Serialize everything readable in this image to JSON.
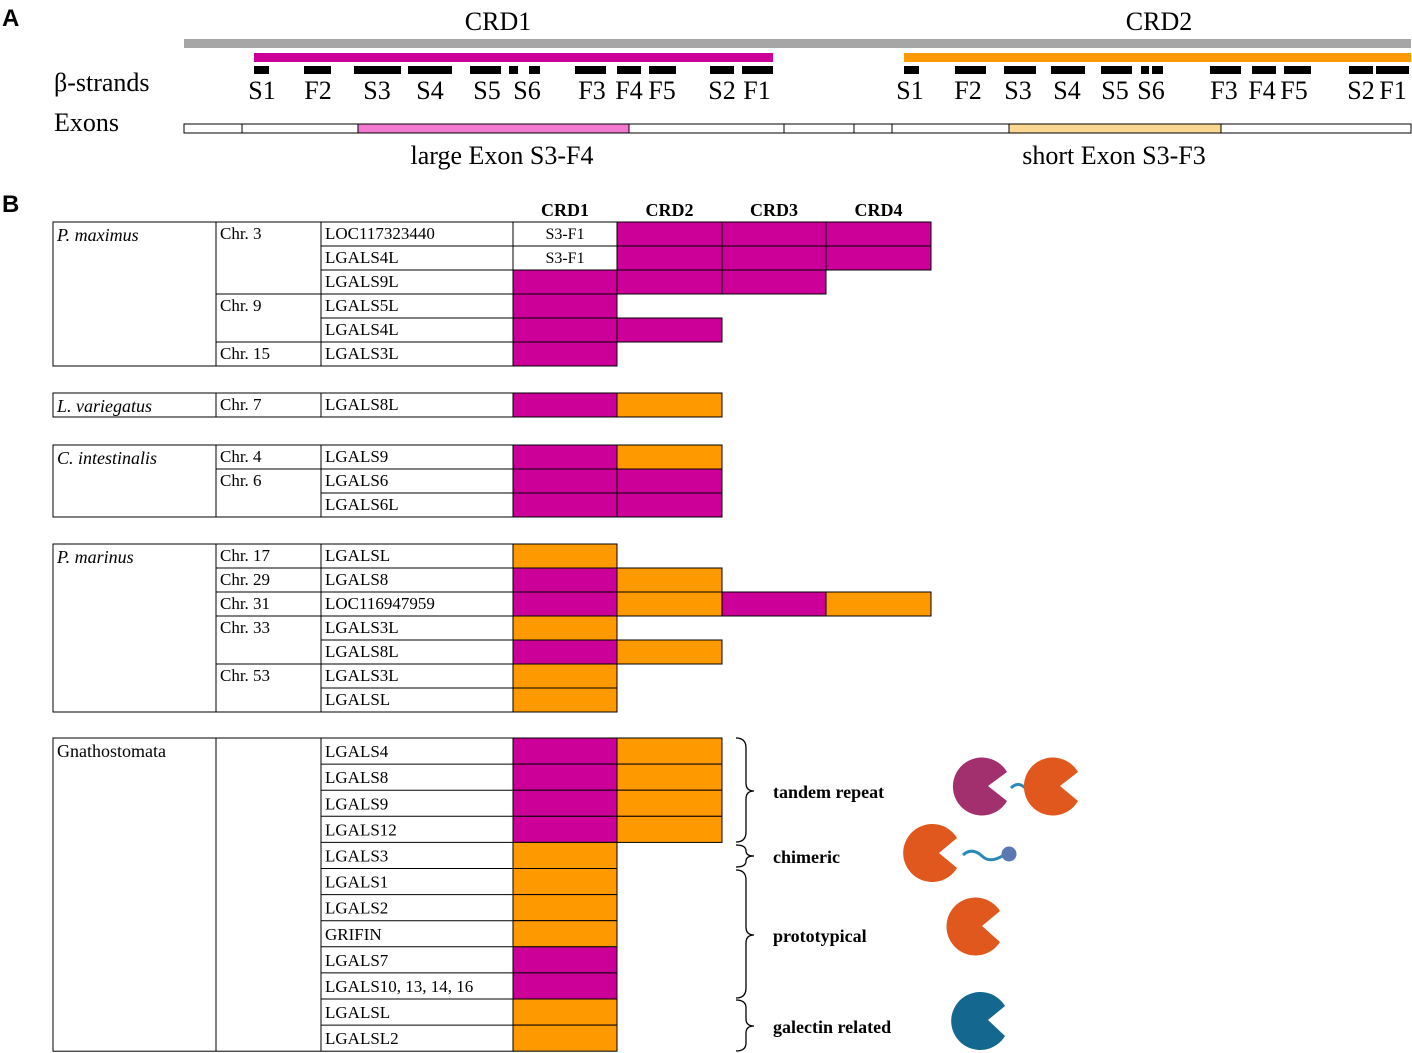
{
  "colors": {
    "magenta": "#cc0099",
    "orange": "#ff9900",
    "gray": "#a6a6a6",
    "exon_pink": "#f279d0",
    "exon_tan": "#fbd792",
    "border": "#000000",
    "purple_icon": "#a3306e",
    "orange_icon": "#e0581e",
    "blue_icon": "#14688f",
    "link": "#2a8ab5",
    "dot": "#5b78b5"
  },
  "panelA": {
    "letter": "A",
    "crd1_label": "CRD1",
    "crd2_label": "CRD2",
    "beta_label": "β-strands",
    "exons_label": "Exons",
    "crd1_strands": [
      "S1",
      "F2",
      "S3",
      "S4",
      "S5",
      "S6",
      "F3",
      "F4",
      "F5",
      "S2",
      "F1"
    ],
    "crd2_strands": [
      "S1",
      "F2",
      "S3",
      "S4",
      "S5",
      "S6",
      "F3",
      "F4",
      "F5",
      "S2",
      "F1"
    ],
    "large_exon_label": "large Exon S3-F4",
    "short_exon_label": "short Exon S3-F3"
  },
  "panelB": {
    "letter": "B",
    "headers": [
      "CRD1",
      "CRD2",
      "CRD3",
      "CRD4"
    ],
    "groups": [
      {
        "species": "P. maximus",
        "italic": true,
        "chromosomes": [
          {
            "label": "Chr. 3",
            "span": 3
          },
          {
            "label": "Chr. 9",
            "span": 2
          },
          {
            "label": "Chr. 15",
            "span": 1
          }
        ],
        "rows": [
          {
            "gene": "LOC117323440",
            "crds": [
              "S3-F1",
              "magenta",
              "magenta",
              "magenta"
            ]
          },
          {
            "gene": "LGALS4L",
            "crds": [
              "S3-F1",
              "magenta",
              "magenta",
              "magenta"
            ]
          },
          {
            "gene": "LGALS9L",
            "crds": [
              "magenta",
              "magenta",
              "magenta"
            ]
          },
          {
            "gene": "LGALS5L",
            "crds": [
              "magenta"
            ]
          },
          {
            "gene": "LGALS4L",
            "crds": [
              "magenta",
              "magenta"
            ]
          },
          {
            "gene": "LGALS3L",
            "crds": [
              "magenta"
            ]
          }
        ]
      },
      {
        "species": "L. variegatus",
        "italic": true,
        "chromosomes": [
          {
            "label": "Chr. 7",
            "span": 1
          }
        ],
        "rows": [
          {
            "gene": "LGALS8L",
            "crds": [
              "magenta",
              "orange"
            ]
          }
        ]
      },
      {
        "species": "C. intestinalis",
        "italic": true,
        "chromosomes": [
          {
            "label": "Chr. 4",
            "span": 1
          },
          {
            "label": "Chr. 6",
            "span": 2
          }
        ],
        "rows": [
          {
            "gene": "LGALS9",
            "crds": [
              "magenta",
              "orange"
            ]
          },
          {
            "gene": "LGALS6",
            "crds": [
              "magenta",
              "magenta"
            ]
          },
          {
            "gene": "LGALS6L",
            "crds": [
              "magenta",
              "magenta"
            ]
          }
        ]
      },
      {
        "species": "P. marinus",
        "italic": true,
        "chromosomes": [
          {
            "label": "Chr. 17",
            "span": 1
          },
          {
            "label": "Chr. 29",
            "span": 1
          },
          {
            "label": "Chr. 31",
            "span": 1
          },
          {
            "label": "Chr. 33",
            "span": 2
          },
          {
            "label": "Chr. 53",
            "span": 2
          }
        ],
        "rows": [
          {
            "gene": "LGALSL",
            "crds": [
              "orange"
            ]
          },
          {
            "gene": "LGALS8",
            "crds": [
              "magenta",
              "orange"
            ]
          },
          {
            "gene": "LOC116947959",
            "crds": [
              "magenta",
              "orange",
              "magenta",
              "orange"
            ]
          },
          {
            "gene": "LGALS3L",
            "crds": [
              "orange"
            ]
          },
          {
            "gene": "LGALS8L",
            "crds": [
              "magenta",
              "orange"
            ]
          },
          {
            "gene": "LGALS3L",
            "crds": [
              "orange"
            ]
          },
          {
            "gene": "LGALSL",
            "crds": [
              "orange"
            ]
          }
        ]
      },
      {
        "species": "Gnathostomata",
        "italic": false,
        "chromosomes": [
          {
            "label": "",
            "span": 12
          }
        ],
        "rows": [
          {
            "gene": "LGALS4",
            "crds": [
              "magenta",
              "orange"
            ]
          },
          {
            "gene": "LGALS8",
            "crds": [
              "magenta",
              "orange"
            ]
          },
          {
            "gene": "LGALS9",
            "crds": [
              "magenta",
              "orange"
            ]
          },
          {
            "gene": "LGALS12",
            "crds": [
              "magenta",
              "orange"
            ]
          },
          {
            "gene": "LGALS3",
            "crds": [
              "orange"
            ]
          },
          {
            "gene": "LGALS1",
            "crds": [
              "orange"
            ]
          },
          {
            "gene": "LGALS2",
            "crds": [
              "orange"
            ]
          },
          {
            "gene": "GRIFIN",
            "crds": [
              "orange"
            ]
          },
          {
            "gene": "LGALS7",
            "crds": [
              "magenta"
            ]
          },
          {
            "gene": "LGALS10, 13, 14, 16",
            "crds": [
              "magenta"
            ]
          },
          {
            "gene": "LGALSL",
            "crds": [
              "orange"
            ]
          },
          {
            "gene": "LGALSL2",
            "crds": [
              "orange"
            ]
          }
        ]
      }
    ],
    "categories": [
      {
        "label": "tandem repeat",
        "icon": "tandem-repeat-icon"
      },
      {
        "label": "chimeric",
        "icon": "chimeric-icon"
      },
      {
        "label": "prototypical",
        "icon": "prototypical-icon"
      },
      {
        "label": "galectin related",
        "icon": "galectin-related-icon"
      }
    ]
  }
}
